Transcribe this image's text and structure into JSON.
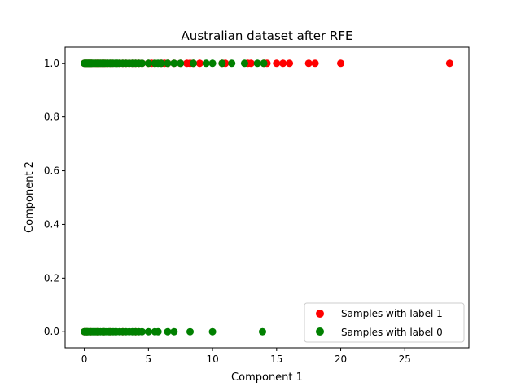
{
  "chart_data": {
    "type": "scatter",
    "title": "Australian dataset after RFE",
    "xlabel": "Component 1",
    "ylabel": "Component 2",
    "xlim": [
      -1.5,
      30
    ],
    "ylim": [
      -0.06,
      1.06
    ],
    "xticks": [
      0,
      5,
      10,
      15,
      20,
      25
    ],
    "xtick_labels": [
      "0",
      "5",
      "10",
      "15",
      "20",
      "25"
    ],
    "yticks": [
      0.0,
      0.2,
      0.4,
      0.6,
      0.8,
      1.0
    ],
    "ytick_labels": [
      "0.0",
      "0.2",
      "0.4",
      "0.6",
      "0.8",
      "1.0"
    ],
    "grid": false,
    "legend_position": "bottom-right",
    "series": [
      {
        "name": "Samples with label 1",
        "color": "#ff0000",
        "points": [
          [
            0.0,
            1
          ],
          [
            0.1,
            1
          ],
          [
            0.2,
            1
          ],
          [
            0.3,
            1
          ],
          [
            0.4,
            1
          ],
          [
            0.5,
            1
          ],
          [
            0.6,
            1
          ],
          [
            0.75,
            1
          ],
          [
            0.9,
            1
          ],
          [
            1.0,
            1
          ],
          [
            1.1,
            1
          ],
          [
            1.25,
            1
          ],
          [
            1.4,
            1
          ],
          [
            1.5,
            1
          ],
          [
            1.65,
            1
          ],
          [
            1.8,
            1
          ],
          [
            2.0,
            1
          ],
          [
            2.2,
            1
          ],
          [
            2.5,
            1
          ],
          [
            2.75,
            1
          ],
          [
            3.0,
            1
          ],
          [
            3.25,
            1
          ],
          [
            3.5,
            1
          ],
          [
            3.75,
            1
          ],
          [
            4.0,
            1
          ],
          [
            4.25,
            1
          ],
          [
            4.5,
            1
          ],
          [
            5.0,
            1
          ],
          [
            5.25,
            1
          ],
          [
            5.5,
            1
          ],
          [
            6.0,
            1
          ],
          [
            6.25,
            1
          ],
          [
            6.5,
            1
          ],
          [
            7.0,
            1
          ],
          [
            7.5,
            1
          ],
          [
            8.0,
            1
          ],
          [
            8.25,
            1
          ],
          [
            8.5,
            1
          ],
          [
            9.0,
            1
          ],
          [
            10.75,
            1
          ],
          [
            11.0,
            1
          ],
          [
            12.75,
            1
          ],
          [
            13.0,
            1
          ],
          [
            14.0,
            1
          ],
          [
            14.25,
            1
          ],
          [
            15.0,
            1
          ],
          [
            15.5,
            1
          ],
          [
            16.0,
            1
          ],
          [
            17.5,
            1
          ],
          [
            18.0,
            1
          ],
          [
            20.0,
            1
          ],
          [
            28.5,
            1
          ],
          [
            0.0,
            0
          ],
          [
            0.2,
            0
          ],
          [
            0.5,
            0
          ],
          [
            1.0,
            0
          ],
          [
            1.5,
            0
          ],
          [
            2.0,
            0
          ],
          [
            3.0,
            0
          ],
          [
            4.0,
            0
          ]
        ]
      },
      {
        "name": "Samples with label 0",
        "color": "#008000",
        "points": [
          [
            0.0,
            1
          ],
          [
            0.05,
            1
          ],
          [
            0.1,
            1
          ],
          [
            0.15,
            1
          ],
          [
            0.2,
            1
          ],
          [
            0.25,
            1
          ],
          [
            0.3,
            1
          ],
          [
            0.35,
            1
          ],
          [
            0.4,
            1
          ],
          [
            0.45,
            1
          ],
          [
            0.5,
            1
          ],
          [
            0.55,
            1
          ],
          [
            0.6,
            1
          ],
          [
            0.7,
            1
          ],
          [
            0.8,
            1
          ],
          [
            0.9,
            1
          ],
          [
            1.0,
            1
          ],
          [
            1.1,
            1
          ],
          [
            1.2,
            1
          ],
          [
            1.3,
            1
          ],
          [
            1.4,
            1
          ],
          [
            1.5,
            1
          ],
          [
            1.6,
            1
          ],
          [
            1.75,
            1
          ],
          [
            1.85,
            1
          ],
          [
            2.0,
            1
          ],
          [
            2.1,
            1
          ],
          [
            2.25,
            1
          ],
          [
            2.4,
            1
          ],
          [
            2.5,
            1
          ],
          [
            2.6,
            1
          ],
          [
            2.75,
            1
          ],
          [
            3.0,
            1
          ],
          [
            3.25,
            1
          ],
          [
            3.5,
            1
          ],
          [
            3.75,
            1
          ],
          [
            4.0,
            1
          ],
          [
            4.25,
            1
          ],
          [
            4.5,
            1
          ],
          [
            5.0,
            1
          ],
          [
            5.5,
            1
          ],
          [
            5.75,
            1
          ],
          [
            6.0,
            1
          ],
          [
            6.5,
            1
          ],
          [
            7.0,
            1
          ],
          [
            7.5,
            1
          ],
          [
            8.5,
            1
          ],
          [
            9.5,
            1
          ],
          [
            10.0,
            1
          ],
          [
            10.75,
            1
          ],
          [
            11.5,
            1
          ],
          [
            12.5,
            1
          ],
          [
            13.5,
            1
          ],
          [
            14.0,
            1
          ],
          [
            0.0,
            0
          ],
          [
            0.05,
            0
          ],
          [
            0.1,
            0
          ],
          [
            0.15,
            0
          ],
          [
            0.2,
            0
          ],
          [
            0.25,
            0
          ],
          [
            0.3,
            0
          ],
          [
            0.4,
            0
          ],
          [
            0.5,
            0
          ],
          [
            0.6,
            0
          ],
          [
            0.7,
            0
          ],
          [
            0.8,
            0
          ],
          [
            0.9,
            0
          ],
          [
            1.0,
            0
          ],
          [
            1.1,
            0
          ],
          [
            1.25,
            0
          ],
          [
            1.4,
            0
          ],
          [
            1.5,
            0
          ],
          [
            1.6,
            0
          ],
          [
            1.75,
            0
          ],
          [
            1.9,
            0
          ],
          [
            2.0,
            0
          ],
          [
            2.15,
            0
          ],
          [
            2.25,
            0
          ],
          [
            2.4,
            0
          ],
          [
            2.5,
            0
          ],
          [
            2.75,
            0
          ],
          [
            3.0,
            0
          ],
          [
            3.25,
            0
          ],
          [
            3.5,
            0
          ],
          [
            3.75,
            0
          ],
          [
            4.0,
            0
          ],
          [
            4.25,
            0
          ],
          [
            4.5,
            0
          ],
          [
            5.0,
            0
          ],
          [
            5.5,
            0
          ],
          [
            5.75,
            0
          ],
          [
            6.5,
            0
          ],
          [
            7.0,
            0
          ],
          [
            8.25,
            0
          ],
          [
            10.0,
            0
          ],
          [
            13.9,
            0
          ]
        ]
      }
    ]
  }
}
